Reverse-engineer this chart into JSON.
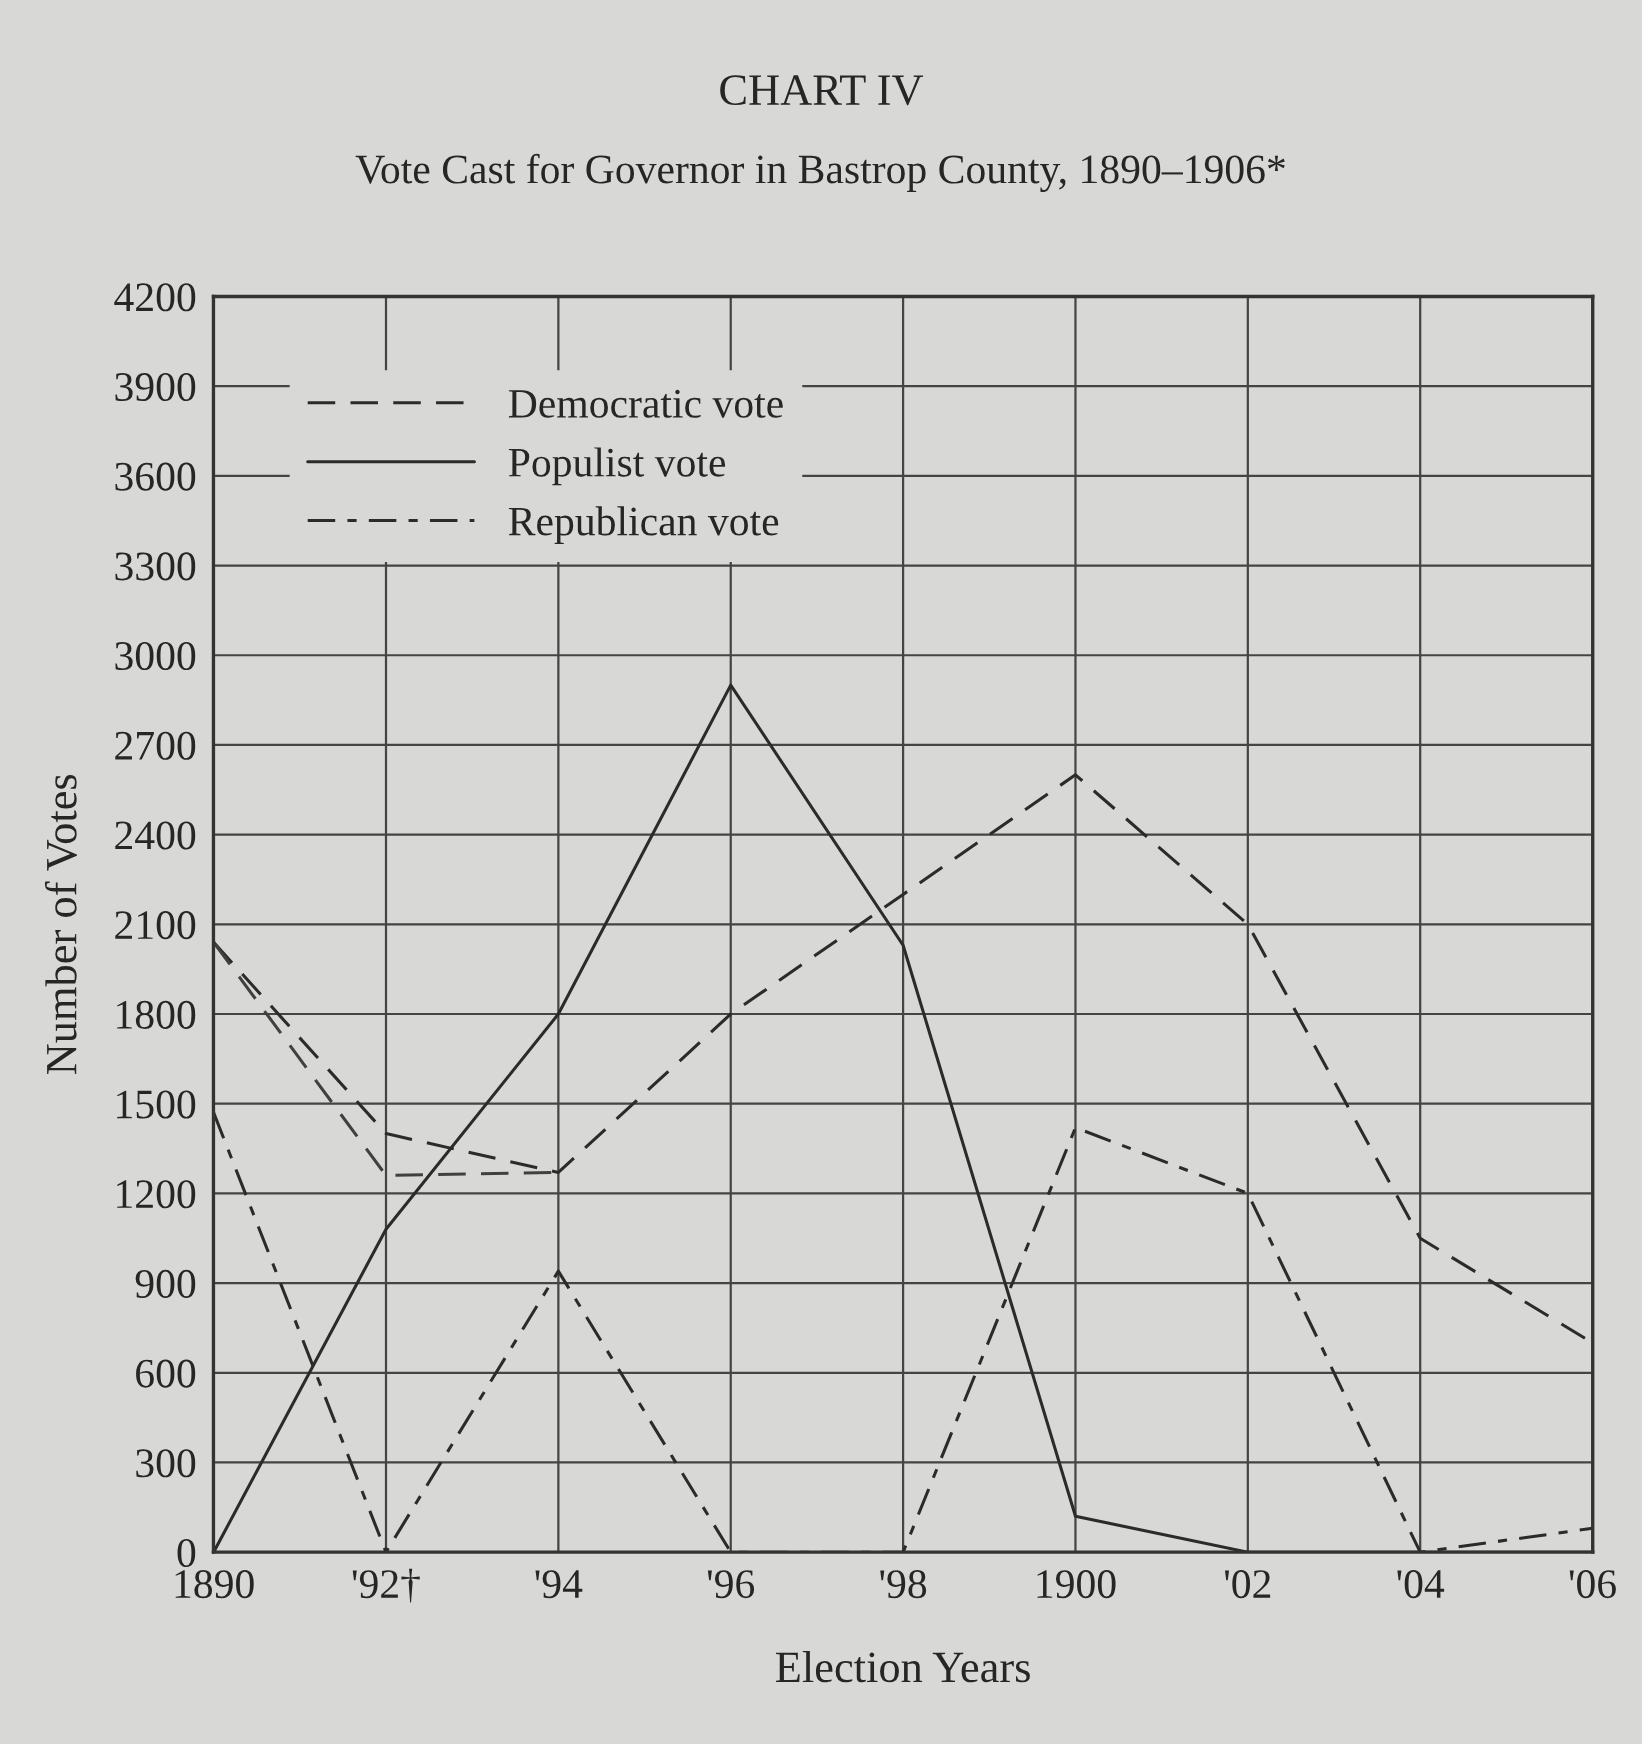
{
  "chart_data": {
    "type": "line",
    "title": "CHART IV",
    "subtitle": "Vote Cast for Governor in Bastrop County, 1890–1906*",
    "xlabel": "Election Years",
    "ylabel": "Number of Votes",
    "categories": [
      "1890",
      "'92†",
      "'94",
      "'96",
      "'98",
      "1900",
      "'02",
      "'04",
      "'06"
    ],
    "series": [
      {
        "name": "Democratic vote",
        "color": "#2b2b2b",
        "line_style": "dashed",
        "values": [
          2040,
          1400,
          1270,
          1800,
          2200,
          2600,
          2100,
          1050,
          700
        ]
      },
      {
        "name": "Populist vote",
        "color": "#2b2b2b",
        "line_style": "solid",
        "values": [
          0,
          1080,
          1800,
          2900,
          2030,
          120,
          0,
          0,
          0
        ]
      },
      {
        "name": "Republican vote",
        "color": "#2b2b2b",
        "line_style": "dashdot",
        "values": [
          1470,
          0,
          940,
          0,
          0,
          1420,
          1200,
          0,
          80
        ]
      },
      {
        "color": "#404040",
        "line_style": "dashed",
        "values": [
          2040,
          1260,
          1270,
          null,
          null,
          null,
          null,
          null,
          null
        ]
      }
    ],
    "ylim": [
      0,
      4200
    ],
    "yticks": [
      0,
      300,
      600,
      900,
      1200,
      1500,
      1800,
      2100,
      2400,
      2700,
      3000,
      3300,
      3600,
      3900,
      4200
    ],
    "grid": true,
    "legend": "top left",
    "marker": "none"
  }
}
